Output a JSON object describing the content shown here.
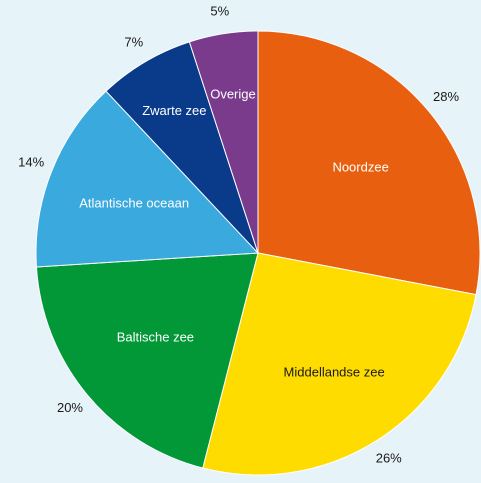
{
  "chart_data": {
    "type": "pie",
    "start": "top",
    "direction": "clockwise",
    "slices": [
      {
        "label": "Noordzee",
        "value": 28,
        "percent_label": "28%",
        "color": "#e8600f",
        "label_color": "#ffffff"
      },
      {
        "label": "Middellandse zee",
        "value": 26,
        "percent_label": "26%",
        "color": "#ffdc00",
        "label_color": "#1a1a1a"
      },
      {
        "label": "Baltische zee",
        "value": 20,
        "percent_label": "20%",
        "color": "#039837",
        "label_color": "#ffffff"
      },
      {
        "label": "Atlantische oceaan",
        "value": 14,
        "percent_label": "14%",
        "color": "#3aa9dd",
        "label_color": "#ffffff"
      },
      {
        "label": "Zwarte zee",
        "value": 7,
        "percent_label": "7%",
        "color": "#0a3a8a",
        "label_color": "#ffffff"
      },
      {
        "label": "Overige",
        "value": 5,
        "percent_label": "5%",
        "color": "#7b3b8c",
        "label_color": "#ffffff"
      }
    ],
    "outside_label_color": "#1a1a1a",
    "background": "#e6f3f8"
  }
}
